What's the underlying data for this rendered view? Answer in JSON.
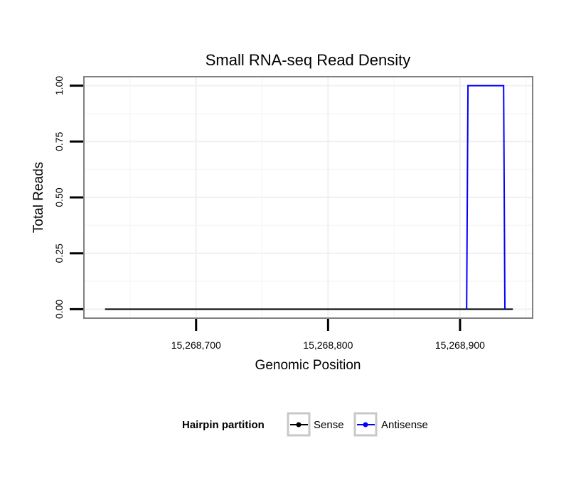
{
  "chart_data": {
    "type": "line",
    "title": "Small RNA-seq Read Density",
    "xlabel": "Genomic Position",
    "ylabel": "Total Reads",
    "xlim": [
      15268615,
      15268955
    ],
    "ylim": [
      -0.04,
      1.04
    ],
    "xticks": [
      15268700,
      15268800,
      15268900
    ],
    "xtick_labels": [
      "15,268,700",
      "15,268,800",
      "15,268,900"
    ],
    "yticks": [
      0,
      0.25,
      0.5,
      0.75,
      1.0
    ],
    "ytick_labels": [
      "0.00",
      "0.25",
      "0.50",
      "0.75",
      "1.00"
    ],
    "grid": true,
    "legend_position": "bottom",
    "legend_title": "Hairpin partition",
    "series": [
      {
        "name": "Sense",
        "color": "#000000",
        "x": [
          15268631,
          15268940
        ],
        "y": [
          0,
          0
        ]
      },
      {
        "name": "Antisense",
        "color": "#0000ff",
        "x": [
          15268905,
          15268906,
          15268933,
          15268934
        ],
        "y": [
          0,
          1,
          1,
          0
        ]
      }
    ]
  }
}
